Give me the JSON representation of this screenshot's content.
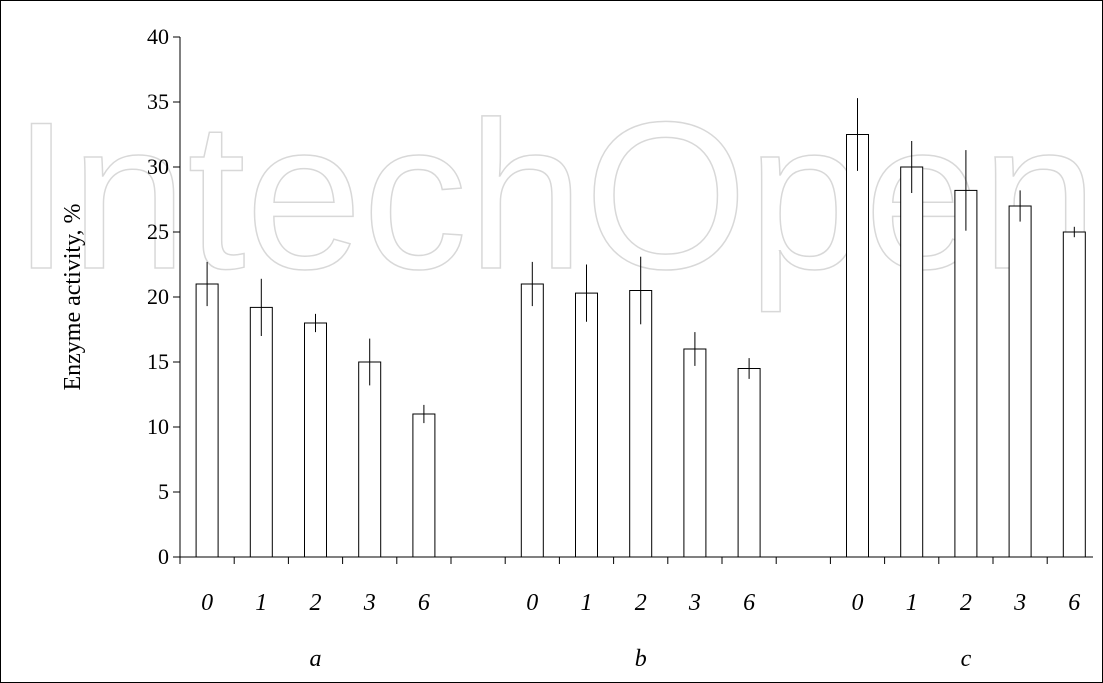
{
  "watermark": {
    "text": "IntechOpen"
  },
  "chart_data": {
    "type": "bar",
    "ylabel": "Enzyme activity, %",
    "xlabel": "",
    "ylim": [
      0,
      40
    ],
    "yticks": [
      0,
      5,
      10,
      15,
      20,
      25,
      30,
      35,
      40
    ],
    "groups": [
      {
        "label": "a",
        "categories": [
          "0",
          "1",
          "2",
          "3",
          "6"
        ],
        "values": [
          21,
          19.2,
          18,
          15,
          11
        ],
        "errors": [
          1.7,
          2.2,
          0.7,
          1.8,
          0.7
        ]
      },
      {
        "label": "b",
        "categories": [
          "0",
          "1",
          "2",
          "3",
          "6"
        ],
        "values": [
          21,
          20.3,
          20.5,
          16,
          14.5
        ],
        "errors": [
          1.7,
          2.2,
          2.6,
          1.3,
          0.8
        ]
      },
      {
        "label": "c",
        "categories": [
          "0",
          "1",
          "2",
          "3",
          "6"
        ],
        "values": [
          32.5,
          30,
          28.2,
          27,
          25
        ],
        "errors": [
          2.8,
          2,
          3.1,
          1.2,
          0.4
        ]
      }
    ],
    "bar_fill": "#ffffff",
    "bar_stroke": "#000000",
    "grid": false
  }
}
